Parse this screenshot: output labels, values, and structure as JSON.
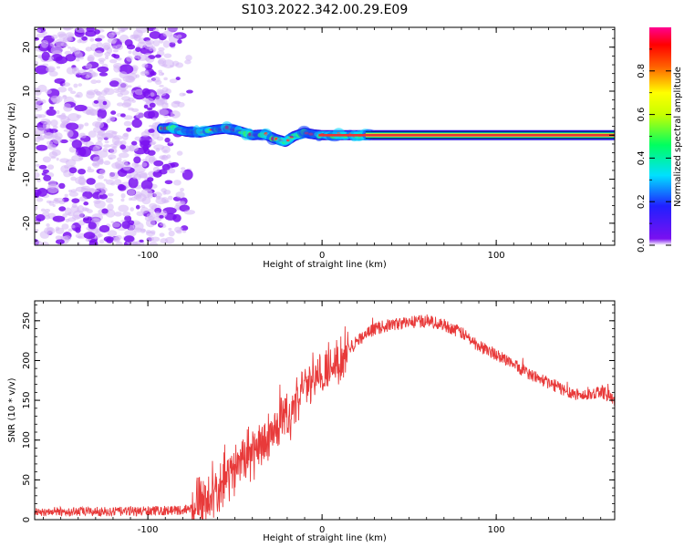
{
  "title": "S103.2022.342.00.29.E09",
  "colors": {
    "snr_line": "#e83a3a",
    "band_core": "#e8343a",
    "noise_dark": "#7a10f0",
    "noise_light": "#d6b8f6"
  },
  "chart_data": [
    {
      "type": "heatmap",
      "name_role": "spectrogram",
      "xlabel": "Height of straight line (km)",
      "ylabel": "Frequency (Hz)",
      "xlim": [
        -165,
        168
      ],
      "ylim": [
        -25,
        24.5
      ],
      "xticks": [
        -100,
        0,
        100
      ],
      "yticks": [
        -20,
        -10,
        0,
        10,
        20
      ],
      "colorbar": {
        "label": "Normalized spectral amplitude",
        "range": [
          0,
          1
        ],
        "ticks": [
          "0.0",
          "0.2",
          "0.4",
          "0.6",
          "0.8"
        ],
        "colormap": "rainbow (purple→blue→cyan→green→yellow→red→magenta)"
      },
      "features": {
        "noise_region_x": [
          -165,
          -75
        ],
        "noise_amplitude": 0.15,
        "band_center_x": [
          -92,
          -85,
          -78,
          -70,
          -62,
          -55,
          -48,
          -40,
          -33,
          -27,
          -21,
          -16,
          -10,
          -5,
          0,
          10,
          20,
          30,
          168
        ],
        "band_center_freq": [
          1.5,
          1.5,
          0.8,
          0.6,
          1.2,
          1.5,
          1.0,
          0.0,
          0.2,
          -0.8,
          -1.5,
          -0.2,
          0.6,
          0.2,
          0.0,
          0.0,
          0.0,
          0.0,
          0.0
        ],
        "band_amplitude": "rises from ~0.3 near -90 km to ~0.9 for heights above 0 km"
      }
    },
    {
      "type": "line",
      "xlabel": "Height of straight line (km)",
      "ylabel": "SNR (10 * v/v)",
      "xlim": [
        -165,
        168
      ],
      "ylim": [
        0,
        275
      ],
      "xticks": [
        -100,
        0,
        100
      ],
      "yticks": [
        0,
        50,
        100,
        150,
        200,
        250
      ],
      "grid": false,
      "envelope": {
        "x": [
          -165,
          -120,
          -80,
          -70,
          -60,
          -50,
          -40,
          -30,
          -20,
          -10,
          0,
          10,
          20,
          30,
          40,
          50,
          60,
          70,
          80,
          90,
          100,
          110,
          120,
          130,
          140,
          150,
          160,
          168
        ],
        "y": [
          10,
          10,
          12,
          18,
          40,
          65,
          85,
          105,
          130,
          165,
          185,
          205,
          225,
          240,
          245,
          248,
          250,
          245,
          235,
          218,
          208,
          195,
          182,
          172,
          162,
          155,
          162,
          150
        ]
      },
      "noise_amplitude": {
        "low_height": 6,
        "transition": 40,
        "high_height": 8
      }
    }
  ]
}
